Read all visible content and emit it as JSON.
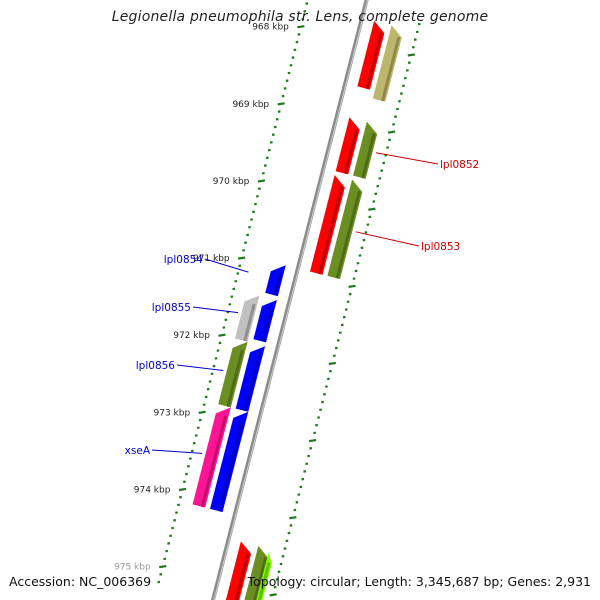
{
  "title": "Legionella pneumophila str. Lens, complete genome",
  "accession": "Accession: NC_006369",
  "summary": "Topology: circular; Length: 3,345,687 bp; Genes: 2,931",
  "ruler": {
    "ticks": [
      {
        "label": "968 kbp",
        "kbp": 968
      },
      {
        "label": "969 kbp",
        "kbp": 969
      },
      {
        "label": "970 kbp",
        "kbp": 970
      },
      {
        "label": "971 kbp",
        "kbp": 971
      },
      {
        "label": "972 kbp",
        "kbp": 972
      },
      {
        "label": "973 kbp",
        "kbp": 973
      },
      {
        "label": "974 kbp",
        "kbp": 974
      },
      {
        "label": "975 kbp",
        "kbp": 975
      }
    ]
  },
  "colors": {
    "backbone": "#8c8c8c",
    "tick": "#1e7a1e",
    "forward_cds": "#ff0000",
    "forward_label": "#cc0000",
    "reverse_cds": "#0000ff",
    "reverse_label": "#0000cc",
    "olive": "#6b8e23",
    "khaki": "#bdb76b",
    "gray": "#c0c0c0",
    "pink": "#ff1493",
    "lime": "#7cfc00"
  },
  "features": [
    {
      "name": "",
      "strand": "+",
      "start": 967.7,
      "end": 968.55,
      "color": "#ff0000",
      "ring": 1
    },
    {
      "name": "",
      "strand": "+",
      "start": 967.7,
      "end": 968.65,
      "color": "#bdb76b",
      "ring": 2
    },
    {
      "name": "lpl0852",
      "strand": "+",
      "start": 968.95,
      "end": 969.65,
      "color": "#ff0000",
      "ring": 1
    },
    {
      "name": "",
      "strand": "+",
      "start": 968.95,
      "end": 969.65,
      "color": "#6b8e23",
      "ring": 2
    },
    {
      "name": "lpl0853",
      "strand": "+",
      "start": 969.7,
      "end": 970.95,
      "color": "#ff0000",
      "ring": 1
    },
    {
      "name": "",
      "strand": "+",
      "start": 969.7,
      "end": 970.95,
      "color": "#6b8e23",
      "ring": 2
    },
    {
      "name": "lpl0854",
      "strand": "-",
      "start": 970.95,
      "end": 971.35,
      "color": "#0000ff",
      "ring": 1
    },
    {
      "name": "lpl0855",
      "strand": "-",
      "start": 971.4,
      "end": 971.95,
      "color": "#0000ff",
      "ring": 1
    },
    {
      "name": "",
      "strand": "-",
      "start": 971.4,
      "end": 972.0,
      "color": "#c0c0c0",
      "ring": 2
    },
    {
      "name": "lpl0856",
      "strand": "-",
      "start": 972.0,
      "end": 972.85,
      "color": "#0000ff",
      "ring": 1
    },
    {
      "name": "",
      "strand": "-",
      "start": 972.0,
      "end": 972.85,
      "color": "#6b8e23",
      "ring": 2
    },
    {
      "name": "xseA",
      "strand": "-",
      "start": 972.85,
      "end": 974.15,
      "color": "#0000ff",
      "ring": 1
    },
    {
      "name": "",
      "strand": "-",
      "start": 972.85,
      "end": 974.15,
      "color": "#ff1493",
      "ring": 2
    },
    {
      "name": "",
      "strand": "+",
      "start": 974.45,
      "end": 975.3,
      "color": "#ff0000",
      "ring": 1
    },
    {
      "name": "",
      "strand": "+",
      "start": 974.45,
      "end": 975.3,
      "color": "#6b8e23",
      "ring": 2
    },
    {
      "name": "",
      "strand": "+",
      "start": 974.5,
      "end": 975.3,
      "color": "#7cfc00",
      "ring": 3
    }
  ]
}
